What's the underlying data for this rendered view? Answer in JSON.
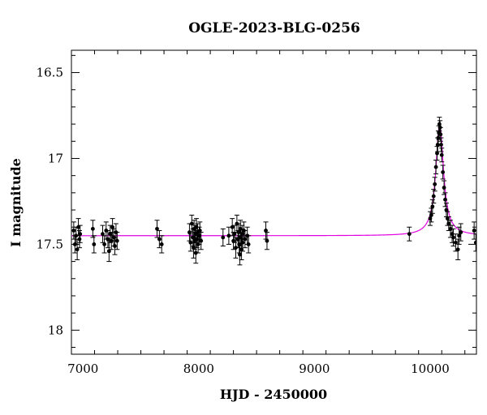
{
  "chart_data": {
    "type": "scatter",
    "title": "OGLE-2023-BLG-0256",
    "xlabel": "HJD - 2450000",
    "ylabel": "I magnitude",
    "xlim": [
      6900,
      10400
    ],
    "ylim": [
      18.14,
      16.37
    ],
    "y_inverted": true,
    "grid": false,
    "x_ticks": [
      7000,
      8000,
      9000,
      10000
    ],
    "x_tick_labels": [
      "7000",
      "8000",
      "9000",
      "10000"
    ],
    "y_ticks": [
      16.5,
      17,
      17.5,
      18
    ],
    "y_tick_labels": [
      "16.5",
      "17",
      "17.5",
      "18"
    ],
    "colors": {
      "data": "#000000",
      "model": "#e000e0"
    },
    "model": {
      "name": "",
      "baseline_mag": 17.45,
      "t0": 10082,
      "peak_mag": 16.8,
      "width_days": 40
    },
    "series": [
      {
        "name": "",
        "points": [
          [
            6920,
            17.42,
            0.05
          ],
          [
            6930,
            17.5,
            0.05
          ],
          [
            6940,
            17.45,
            0.05
          ],
          [
            6950,
            17.53,
            0.06
          ],
          [
            6960,
            17.4,
            0.05
          ],
          [
            6970,
            17.47,
            0.05
          ],
          [
            6975,
            17.44,
            0.05
          ],
          [
            7085,
            17.41,
            0.05
          ],
          [
            7095,
            17.5,
            0.05
          ],
          [
            7170,
            17.44,
            0.05
          ],
          [
            7185,
            17.5,
            0.05
          ],
          [
            7200,
            17.42,
            0.05
          ],
          [
            7215,
            17.47,
            0.05
          ],
          [
            7225,
            17.54,
            0.06
          ],
          [
            7235,
            17.44,
            0.05
          ],
          [
            7245,
            17.48,
            0.05
          ],
          [
            7255,
            17.4,
            0.05
          ],
          [
            7265,
            17.46,
            0.05
          ],
          [
            7275,
            17.51,
            0.05
          ],
          [
            7285,
            17.43,
            0.05
          ],
          [
            7295,
            17.48,
            0.05
          ],
          [
            7640,
            17.41,
            0.05
          ],
          [
            7660,
            17.47,
            0.05
          ],
          [
            7680,
            17.5,
            0.05
          ],
          [
            7920,
            17.43,
            0.05
          ],
          [
            7930,
            17.49,
            0.05
          ],
          [
            7940,
            17.38,
            0.05
          ],
          [
            7950,
            17.46,
            0.05
          ],
          [
            7955,
            17.52,
            0.06
          ],
          [
            7960,
            17.41,
            0.05
          ],
          [
            7965,
            17.48,
            0.05
          ],
          [
            7970,
            17.44,
            0.05
          ],
          [
            7975,
            17.55,
            0.06
          ],
          [
            7980,
            17.4,
            0.05
          ],
          [
            7985,
            17.47,
            0.05
          ],
          [
            7990,
            17.43,
            0.05
          ],
          [
            7995,
            17.5,
            0.05
          ],
          [
            8005,
            17.45,
            0.05
          ],
          [
            8010,
            17.42,
            0.05
          ],
          [
            8020,
            17.48,
            0.05
          ],
          [
            8210,
            17.46,
            0.05
          ],
          [
            8260,
            17.45,
            0.05
          ],
          [
            8290,
            17.4,
            0.05
          ],
          [
            8300,
            17.48,
            0.05
          ],
          [
            8310,
            17.44,
            0.05
          ],
          [
            8320,
            17.52,
            0.06
          ],
          [
            8330,
            17.38,
            0.05
          ],
          [
            8340,
            17.47,
            0.05
          ],
          [
            8345,
            17.43,
            0.05
          ],
          [
            8350,
            17.5,
            0.05
          ],
          [
            8355,
            17.56,
            0.06
          ],
          [
            8360,
            17.41,
            0.05
          ],
          [
            8365,
            17.46,
            0.05
          ],
          [
            8370,
            17.53,
            0.06
          ],
          [
            8375,
            17.44,
            0.05
          ],
          [
            8380,
            17.49,
            0.05
          ],
          [
            8390,
            17.42,
            0.05
          ],
          [
            8400,
            17.47,
            0.05
          ],
          [
            8420,
            17.45,
            0.05
          ],
          [
            8430,
            17.5,
            0.05
          ],
          [
            8580,
            17.42,
            0.05
          ],
          [
            8590,
            17.48,
            0.05
          ],
          [
            9820,
            17.44,
            0.04
          ],
          [
            10000,
            17.35,
            0.04
          ],
          [
            10010,
            17.33,
            0.04
          ],
          [
            10020,
            17.28,
            0.04
          ],
          [
            10030,
            17.22,
            0.04
          ],
          [
            10040,
            17.15,
            0.04
          ],
          [
            10050,
            17.05,
            0.04
          ],
          [
            10060,
            16.97,
            0.04
          ],
          [
            10065,
            16.92,
            0.04
          ],
          [
            10070,
            16.88,
            0.04
          ],
          [
            10075,
            16.85,
            0.04
          ],
          [
            10080,
            16.8,
            0.04
          ],
          [
            10085,
            16.82,
            0.04
          ],
          [
            10090,
            16.86,
            0.04
          ],
          [
            10095,
            16.92,
            0.04
          ],
          [
            10100,
            16.98,
            0.04
          ],
          [
            10110,
            17.08,
            0.04
          ],
          [
            10120,
            17.17,
            0.04
          ],
          [
            10130,
            17.24,
            0.04
          ],
          [
            10140,
            17.3,
            0.04
          ],
          [
            10150,
            17.35,
            0.04
          ],
          [
            10160,
            17.38,
            0.04
          ],
          [
            10175,
            17.41,
            0.05
          ],
          [
            10190,
            17.44,
            0.05
          ],
          [
            10200,
            17.46,
            0.05
          ],
          [
            10220,
            17.49,
            0.05
          ],
          [
            10240,
            17.53,
            0.06
          ],
          [
            10250,
            17.45,
            0.05
          ],
          [
            10265,
            17.43,
            0.05
          ],
          [
            10380,
            17.42,
            0.05
          ],
          [
            10395,
            17.49,
            0.05
          ]
        ]
      }
    ]
  }
}
